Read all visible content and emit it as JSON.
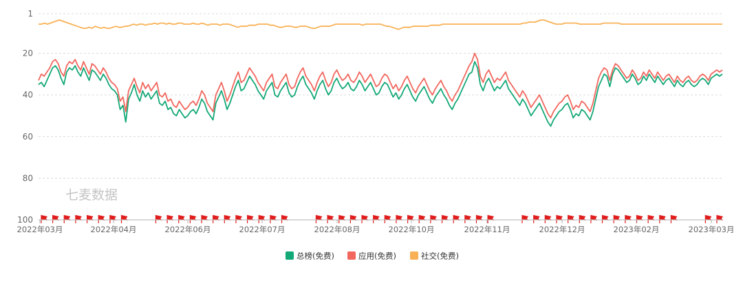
{
  "watermark": "七麦数据",
  "chart_data": {
    "type": "line",
    "y_axis": {
      "reversed": true,
      "ylim": [
        1,
        100
      ],
      "ticks": [
        1,
        20,
        40,
        60,
        80,
        100
      ]
    },
    "x_tick_labels": [
      "2022年03月",
      "2022年04月",
      "2022年06月",
      "2022年07月",
      "2022年08月",
      "2022年10月",
      "2022年11月",
      "2022年12月",
      "2023年02月",
      "2023年03月"
    ],
    "grid": "dashed-horizontal",
    "legend_position": "bottom-center",
    "series": [
      {
        "name": "总榜(免费)",
        "color": "#13a877",
        "values": [
          35,
          34,
          36,
          33,
          30,
          27,
          26,
          28,
          32,
          35,
          29,
          27,
          28,
          26,
          29,
          31,
          27,
          30,
          33,
          28,
          29,
          31,
          33,
          30,
          32,
          35,
          37,
          38,
          40,
          47,
          45,
          53,
          42,
          39,
          35,
          40,
          43,
          38,
          41,
          39,
          42,
          40,
          38,
          44,
          45,
          43,
          47,
          46,
          49,
          50,
          47,
          49,
          51,
          50,
          48,
          47,
          49,
          46,
          42,
          44,
          48,
          50,
          52,
          44,
          41,
          38,
          42,
          47,
          44,
          40,
          36,
          33,
          38,
          37,
          34,
          31,
          33,
          35,
          38,
          40,
          42,
          38,
          36,
          34,
          40,
          41,
          38,
          36,
          34,
          39,
          41,
          40,
          36,
          33,
          31,
          35,
          37,
          39,
          42,
          38,
          35,
          33,
          37,
          40,
          38,
          34,
          32,
          35,
          37,
          36,
          34,
          37,
          38,
          36,
          33,
          35,
          38,
          36,
          34,
          37,
          40,
          39,
          36,
          34,
          35,
          38,
          41,
          39,
          42,
          40,
          37,
          35,
          38,
          41,
          43,
          40,
          38,
          36,
          39,
          42,
          44,
          41,
          39,
          37,
          40,
          42,
          45,
          47,
          44,
          42,
          39,
          36,
          33,
          30,
          29,
          24,
          27,
          35,
          38,
          34,
          32,
          35,
          38,
          36,
          37,
          35,
          33,
          37,
          39,
          41,
          43,
          45,
          42,
          44,
          47,
          50,
          48,
          46,
          44,
          47,
          50,
          53,
          55,
          52,
          50,
          48,
          47,
          45,
          44,
          47,
          51,
          49,
          50,
          47,
          48,
          50,
          52,
          48,
          42,
          36,
          33,
          30,
          31,
          36,
          30,
          27,
          28,
          30,
          32,
          34,
          33,
          30,
          32,
          35,
          34,
          31,
          33,
          30,
          32,
          34,
          31,
          33,
          35,
          33,
          32,
          34,
          36,
          33,
          35,
          36,
          34,
          33,
          35,
          36,
          35,
          33,
          32,
          33,
          35,
          32,
          31,
          30,
          31,
          30
        ]
      },
      {
        "name": "应用(免费)",
        "color": "#f1665d",
        "values": [
          33,
          30,
          31,
          29,
          27,
          24,
          23,
          25,
          29,
          31,
          26,
          24,
          25,
          23,
          26,
          28,
          24,
          27,
          30,
          25,
          26,
          28,
          30,
          27,
          29,
          32,
          34,
          35,
          37,
          43,
          41,
          48,
          38,
          35,
          32,
          36,
          39,
          34,
          37,
          35,
          38,
          36,
          34,
          40,
          41,
          39,
          43,
          42,
          45,
          46,
          43,
          45,
          47,
          46,
          44,
          43,
          45,
          42,
          38,
          40,
          44,
          46,
          48,
          40,
          37,
          34,
          38,
          43,
          40,
          36,
          32,
          29,
          34,
          33,
          30,
          27,
          29,
          31,
          34,
          36,
          38,
          34,
          32,
          30,
          36,
          37,
          34,
          32,
          30,
          35,
          37,
          36,
          32,
          29,
          27,
          31,
          33,
          35,
          38,
          34,
          31,
          29,
          33,
          36,
          34,
          30,
          28,
          31,
          33,
          32,
          30,
          33,
          34,
          32,
          29,
          31,
          34,
          32,
          30,
          33,
          36,
          35,
          32,
          30,
          31,
          34,
          37,
          35,
          38,
          36,
          33,
          31,
          34,
          37,
          39,
          36,
          34,
          32,
          35,
          38,
          40,
          37,
          35,
          33,
          36,
          38,
          41,
          43,
          40,
          38,
          35,
          32,
          29,
          26,
          24,
          20,
          23,
          31,
          34,
          30,
          28,
          31,
          34,
          32,
          33,
          31,
          29,
          33,
          35,
          37,
          39,
          41,
          38,
          40,
          43,
          46,
          44,
          42,
          40,
          43,
          46,
          49,
          51,
          48,
          46,
          44,
          43,
          41,
          40,
          43,
          47,
          45,
          46,
          43,
          44,
          46,
          48,
          44,
          38,
          32,
          29,
          27,
          28,
          33,
          28,
          25,
          26,
          28,
          30,
          32,
          31,
          28,
          30,
          33,
          32,
          29,
          31,
          28,
          30,
          32,
          29,
          31,
          33,
          31,
          30,
          32,
          34,
          31,
          33,
          34,
          32,
          31,
          33,
          34,
          33,
          31,
          30,
          31,
          33,
          30,
          29,
          28,
          29,
          28
        ]
      },
      {
        "name": "社交(免费)",
        "color": "#f8b155",
        "values": [
          6,
          6,
          5.5,
          6,
          5.5,
          5,
          4.5,
          4,
          4.5,
          5,
          5.5,
          6,
          6.5,
          7,
          7.5,
          8,
          8,
          7.5,
          8,
          7,
          7.5,
          8,
          7.5,
          8,
          8,
          7.5,
          7,
          7.5,
          7.5,
          7,
          7,
          6.5,
          6,
          6.5,
          6,
          6,
          6.5,
          6,
          6,
          5.5,
          6,
          5.5,
          5.5,
          6,
          5.5,
          6,
          6,
          5.5,
          5.5,
          6,
          6,
          6,
          5.5,
          6,
          6,
          5.5,
          6,
          6.5,
          6,
          6,
          6,
          6.5,
          6,
          6,
          6,
          6.5,
          7,
          7.5,
          7,
          7,
          7,
          6.5,
          6.5,
          6.5,
          6,
          6,
          6,
          6,
          6.5,
          6.5,
          7,
          7.5,
          7.5,
          7,
          7,
          7,
          7.5,
          7.5,
          7,
          7,
          7,
          7.5,
          8,
          8,
          7.5,
          7,
          7,
          7,
          7,
          6.5,
          6,
          6,
          6,
          6,
          6,
          6,
          6,
          6,
          6,
          6.5,
          6,
          6,
          6,
          6,
          6,
          6,
          6.5,
          7,
          7,
          7.5,
          8,
          8.5,
          8,
          7.5,
          7.5,
          7.5,
          7,
          7,
          7,
          7,
          7,
          7,
          6.5,
          6.5,
          6.5,
          6.5,
          6,
          6,
          6,
          6,
          6,
          6,
          6,
          6,
          6,
          6,
          6,
          6,
          6,
          6,
          6,
          6,
          6,
          6,
          6,
          6,
          6,
          6,
          6,
          6,
          6,
          6,
          6,
          5.5,
          5.5,
          5,
          5,
          5,
          4.5,
          4,
          4,
          4.5,
          5,
          5.5,
          6,
          6,
          6,
          5.5,
          5.5,
          5.5,
          5.5,
          5.5,
          6,
          6,
          6,
          6,
          6,
          6,
          6,
          6,
          5.5,
          5.5,
          5.5,
          5.5,
          5.5,
          5.5,
          6,
          6,
          6,
          6,
          6,
          6,
          6,
          6,
          6,
          6,
          6,
          6,
          6,
          6,
          6,
          6,
          6,
          6,
          6,
          6,
          6,
          6,
          6,
          6,
          6,
          6,
          6,
          6,
          6,
          6,
          6,
          6,
          6,
          6,
          6
        ]
      }
    ],
    "event_flags": {
      "color": "#e01e1e",
      "count": 60
    }
  }
}
